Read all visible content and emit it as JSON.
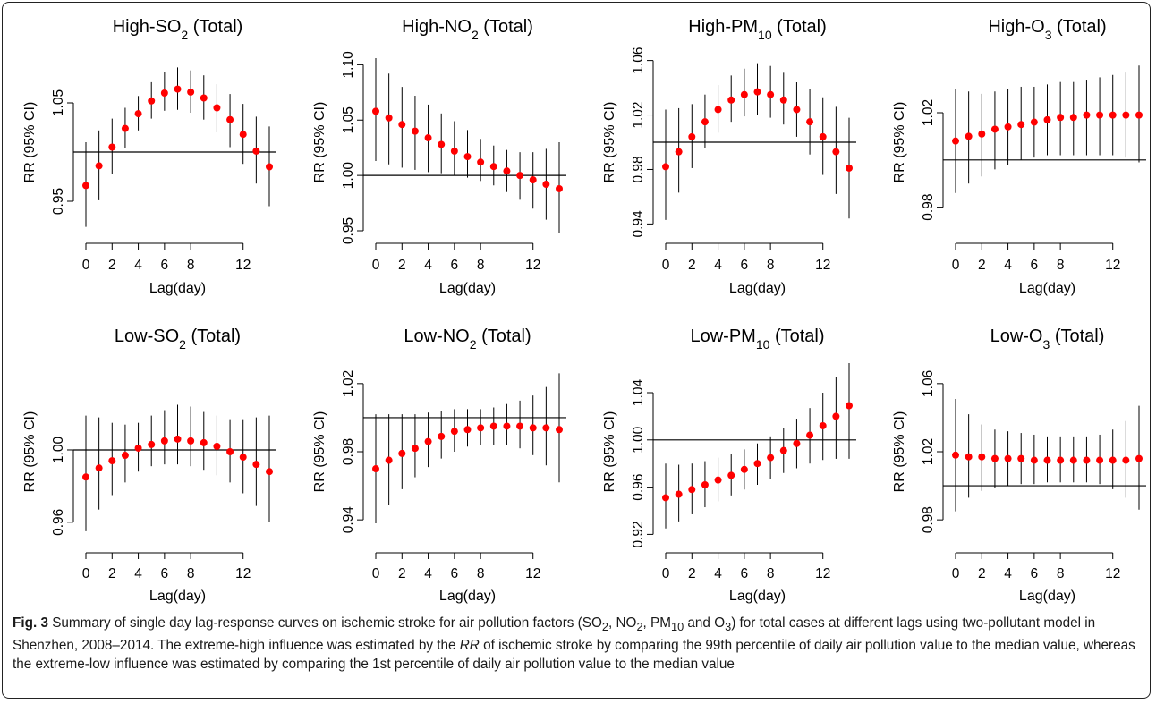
{
  "chart_data": [
    {
      "type": "scatter",
      "title": "High-SO2 (Total)",
      "title_parts": [
        "High-SO",
        "2",
        " (Total)"
      ],
      "xlabel": "Lag(day)",
      "ylabel": "RR (95% CI)",
      "xlim": [
        0,
        14
      ],
      "ylim": [
        0.92,
        1.1
      ],
      "xticks": [
        0,
        2,
        4,
        6,
        8,
        12
      ],
      "yticks": [
        0.95,
        1.05
      ],
      "reference_line": 1.0,
      "x": [
        0,
        1,
        2,
        3,
        4,
        5,
        6,
        7,
        8,
        9,
        10,
        11,
        12,
        13,
        14
      ],
      "rr": [
        0.966,
        0.986,
        1.005,
        1.024,
        1.039,
        1.052,
        1.06,
        1.064,
        1.061,
        1.055,
        1.045,
        1.033,
        1.018,
        1.001,
        0.985
      ],
      "lower": [
        0.924,
        0.951,
        0.978,
        1.004,
        1.022,
        1.034,
        1.042,
        1.043,
        1.04,
        1.033,
        1.02,
        1.005,
        0.988,
        0.968,
        0.945
      ],
      "upper": [
        1.01,
        1.022,
        1.034,
        1.045,
        1.057,
        1.071,
        1.081,
        1.086,
        1.083,
        1.078,
        1.069,
        1.059,
        1.049,
        1.036,
        1.026
      ]
    },
    {
      "type": "scatter",
      "title": "High-NO2 (Total)",
      "title_parts": [
        "High-NO",
        "2",
        " (Total)"
      ],
      "xlabel": "Lag(day)",
      "ylabel": "RR (95% CI)",
      "xlim": [
        0,
        14
      ],
      "ylim": [
        0.95,
        1.11
      ],
      "xticks": [
        0,
        2,
        4,
        6,
        8,
        12
      ],
      "yticks": [
        0.95,
        1.0,
        1.05,
        1.1
      ],
      "reference_line": 1.0,
      "x": [
        0,
        1,
        2,
        3,
        4,
        5,
        6,
        7,
        8,
        9,
        10,
        11,
        12,
        13,
        14
      ],
      "rr": [
        1.058,
        1.052,
        1.046,
        1.04,
        1.034,
        1.028,
        1.022,
        1.017,
        1.012,
        1.008,
        1.004,
        1.0,
        0.996,
        0.992,
        0.988
      ],
      "lower": [
        1.013,
        1.01,
        1.007,
        1.005,
        1.003,
        1.002,
        1.0,
        0.998,
        0.995,
        0.991,
        0.985,
        0.978,
        0.97,
        0.96,
        0.948
      ],
      "upper": [
        1.106,
        1.092,
        1.08,
        1.072,
        1.064,
        1.056,
        1.049,
        1.041,
        1.033,
        1.027,
        1.023,
        1.021,
        1.021,
        1.024,
        1.03
      ]
    },
    {
      "type": "scatter",
      "title": "High-PM10 (Total)",
      "title_parts": [
        "High-PM",
        "10",
        " (Total)"
      ],
      "xlabel": "Lag(day)",
      "ylabel": "RR (95% CI)",
      "xlim": [
        0,
        14
      ],
      "ylim": [
        0.935,
        1.065
      ],
      "xticks": [
        0,
        2,
        4,
        6,
        8,
        12
      ],
      "yticks": [
        0.94,
        0.98,
        1.02,
        1.06
      ],
      "reference_line": 1.0,
      "x": [
        0,
        1,
        2,
        3,
        4,
        5,
        6,
        7,
        8,
        9,
        10,
        11,
        12,
        13,
        14
      ],
      "rr": [
        0.982,
        0.993,
        1.004,
        1.015,
        1.024,
        1.031,
        1.035,
        1.037,
        1.035,
        1.031,
        1.024,
        1.015,
        1.004,
        0.993,
        0.981
      ],
      "lower": [
        0.943,
        0.963,
        0.981,
        0.996,
        1.007,
        1.015,
        1.019,
        1.02,
        1.018,
        1.013,
        1.004,
        0.991,
        0.976,
        0.962,
        0.944
      ],
      "upper": [
        1.024,
        1.025,
        1.028,
        1.035,
        1.042,
        1.049,
        1.054,
        1.058,
        1.056,
        1.051,
        1.044,
        1.039,
        1.033,
        1.026,
        1.018
      ]
    },
    {
      "type": "scatter",
      "title": "High-O3 (Total)",
      "title_parts": [
        "High-O",
        "3",
        " (Total)"
      ],
      "xlabel": "Lag(day)",
      "ylabel": "RR (95% CI)",
      "xlim": [
        0,
        14
      ],
      "ylim": [
        0.97,
        1.045
      ],
      "xticks": [
        0,
        2,
        4,
        6,
        8,
        12
      ],
      "yticks": [
        0.98,
        1.02
      ],
      "reference_line": 1.0,
      "x": [
        0,
        1,
        2,
        3,
        4,
        5,
        6,
        7,
        8,
        9,
        10,
        11,
        12,
        13,
        14
      ],
      "rr": [
        1.008,
        1.01,
        1.011,
        1.013,
        1.014,
        1.015,
        1.016,
        1.017,
        1.018,
        1.018,
        1.019,
        1.019,
        1.019,
        1.019,
        1.019
      ],
      "lower": [
        0.986,
        0.99,
        0.993,
        0.996,
        0.998,
        1.0,
        1.001,
        1.002,
        1.002,
        1.002,
        1.002,
        1.002,
        1.002,
        1.001,
        0.999
      ],
      "upper": [
        1.03,
        1.029,
        1.028,
        1.029,
        1.03,
        1.031,
        1.031,
        1.032,
        1.033,
        1.033,
        1.034,
        1.035,
        1.036,
        1.037,
        1.04
      ]
    },
    {
      "type": "scatter",
      "title": "Low-SO2 (Total)",
      "title_parts": [
        "Low-SO",
        "2",
        " (Total)"
      ],
      "xlabel": "Lag(day)",
      "ylabel": "RR (95% CI)",
      "xlim": [
        0,
        14
      ],
      "ylim": [
        0.95,
        1.048
      ],
      "xticks": [
        0,
        2,
        4,
        6,
        8,
        12
      ],
      "yticks": [
        0.96,
        1.0
      ],
      "reference_line": 1.0,
      "x": [
        0,
        1,
        2,
        3,
        4,
        5,
        6,
        7,
        8,
        9,
        10,
        11,
        12,
        13,
        14
      ],
      "rr": [
        0.985,
        0.99,
        0.994,
        0.997,
        1.001,
        1.003,
        1.005,
        1.006,
        1.005,
        1.004,
        1.002,
        0.999,
        0.996,
        0.992,
        0.988
      ],
      "lower": [
        0.955,
        0.967,
        0.975,
        0.982,
        0.988,
        0.991,
        0.992,
        0.992,
        0.991,
        0.989,
        0.986,
        0.982,
        0.976,
        0.969,
        0.96
      ],
      "upper": [
        1.019,
        1.018,
        1.015,
        1.014,
        1.015,
        1.019,
        1.022,
        1.025,
        1.024,
        1.021,
        1.019,
        1.017,
        1.017,
        1.018,
        1.019
      ]
    },
    {
      "type": "scatter",
      "title": "Low-NO2 (Total)",
      "title_parts": [
        "Low-NO",
        "2",
        " (Total)"
      ],
      "xlabel": "Lag(day)",
      "ylabel": "RR (95% CI)",
      "xlim": [
        0,
        14
      ],
      "ylim": [
        0.928,
        1.032
      ],
      "xticks": [
        0,
        2,
        4,
        6,
        8,
        12
      ],
      "yticks": [
        0.94,
        0.98,
        1.02
      ],
      "reference_line": 1.0,
      "x": [
        0,
        1,
        2,
        3,
        4,
        5,
        6,
        7,
        8,
        9,
        10,
        11,
        12,
        13,
        14
      ],
      "rr": [
        0.97,
        0.975,
        0.979,
        0.982,
        0.986,
        0.989,
        0.992,
        0.993,
        0.994,
        0.995,
        0.995,
        0.995,
        0.994,
        0.994,
        0.993
      ],
      "lower": [
        0.938,
        0.949,
        0.958,
        0.965,
        0.971,
        0.976,
        0.98,
        0.983,
        0.984,
        0.984,
        0.984,
        0.982,
        0.978,
        0.972,
        0.962
      ],
      "upper": [
        1.002,
        1.002,
        1.002,
        1.002,
        1.003,
        1.004,
        1.005,
        1.005,
        1.005,
        1.006,
        1.008,
        1.01,
        1.013,
        1.018,
        1.026
      ]
    },
    {
      "type": "scatter",
      "title": "Low-PM10 (Total)",
      "title_parts": [
        "Low-PM",
        "10",
        " (Total)"
      ],
      "xlabel": "Lag(day)",
      "ylabel": "RR (95% CI)",
      "xlim": [
        0,
        14
      ],
      "ylim": [
        0.915,
        1.065
      ],
      "xticks": [
        0,
        2,
        4,
        6,
        8,
        12
      ],
      "yticks": [
        0.92,
        0.96,
        1.0,
        1.04
      ],
      "reference_line": 1.0,
      "x": [
        0,
        1,
        2,
        3,
        4,
        5,
        6,
        7,
        8,
        9,
        10,
        11,
        12,
        13,
        14
      ],
      "rr": [
        0.951,
        0.954,
        0.958,
        0.962,
        0.966,
        0.97,
        0.975,
        0.98,
        0.985,
        0.991,
        0.997,
        1.004,
        1.012,
        1.02,
        1.029
      ],
      "lower": [
        0.925,
        0.931,
        0.937,
        0.943,
        0.948,
        0.953,
        0.958,
        0.962,
        0.967,
        0.972,
        0.976,
        0.98,
        0.983,
        0.984,
        0.984
      ],
      "upper": [
        0.98,
        0.979,
        0.98,
        0.982,
        0.985,
        0.988,
        0.992,
        0.997,
        1.003,
        1.01,
        1.018,
        1.027,
        1.04,
        1.053,
        1.065
      ]
    },
    {
      "type": "scatter",
      "title": "Low-O3 (Total)",
      "title_parts": [
        "Low-O",
        "3",
        " (Total)"
      ],
      "xlabel": "Lag(day)",
      "ylabel": "RR (95% CI)",
      "xlim": [
        0,
        14
      ],
      "ylim": [
        0.968,
        1.072
      ],
      "xticks": [
        0,
        2,
        4,
        6,
        8,
        12
      ],
      "yticks": [
        0.98,
        1.02,
        1.06
      ],
      "reference_line": 1.0,
      "x": [
        0,
        1,
        2,
        3,
        4,
        5,
        6,
        7,
        8,
        9,
        10,
        11,
        12,
        13,
        14
      ],
      "rr": [
        1.018,
        1.017,
        1.017,
        1.016,
        1.016,
        1.016,
        1.015,
        1.015,
        1.015,
        1.015,
        1.015,
        1.015,
        1.015,
        1.015,
        1.016
      ],
      "lower": [
        0.985,
        0.993,
        0.997,
        0.999,
        1.0,
        1.001,
        1.001,
        1.002,
        1.002,
        1.002,
        1.002,
        1.001,
        0.998,
        0.993,
        0.986
      ],
      "upper": [
        1.051,
        1.042,
        1.036,
        1.033,
        1.032,
        1.031,
        1.03,
        1.029,
        1.029,
        1.029,
        1.029,
        1.03,
        1.033,
        1.038,
        1.047
      ]
    }
  ],
  "colors": {
    "point": "#ff0000",
    "line": "#000000"
  },
  "caption": {
    "label": "Fig. 3",
    "html": "Summary of single day lag-response curves on ischemic stroke for air pollution factors (SO<sub>2</sub>, NO<sub>2</sub>, PM<sub>10</sub> and O<sub>3</sub>) for total cases at different lags using two-pollutant model in Shenzhen, 2008–2014. The extreme-high influence was estimated by the <i>RR</i> of ischemic stroke by comparing the 99th percentile of daily air pollution value to the median value, whereas the extreme-low influence was estimated by comparing the 1st percentile of daily air pollution value to the median value"
  }
}
